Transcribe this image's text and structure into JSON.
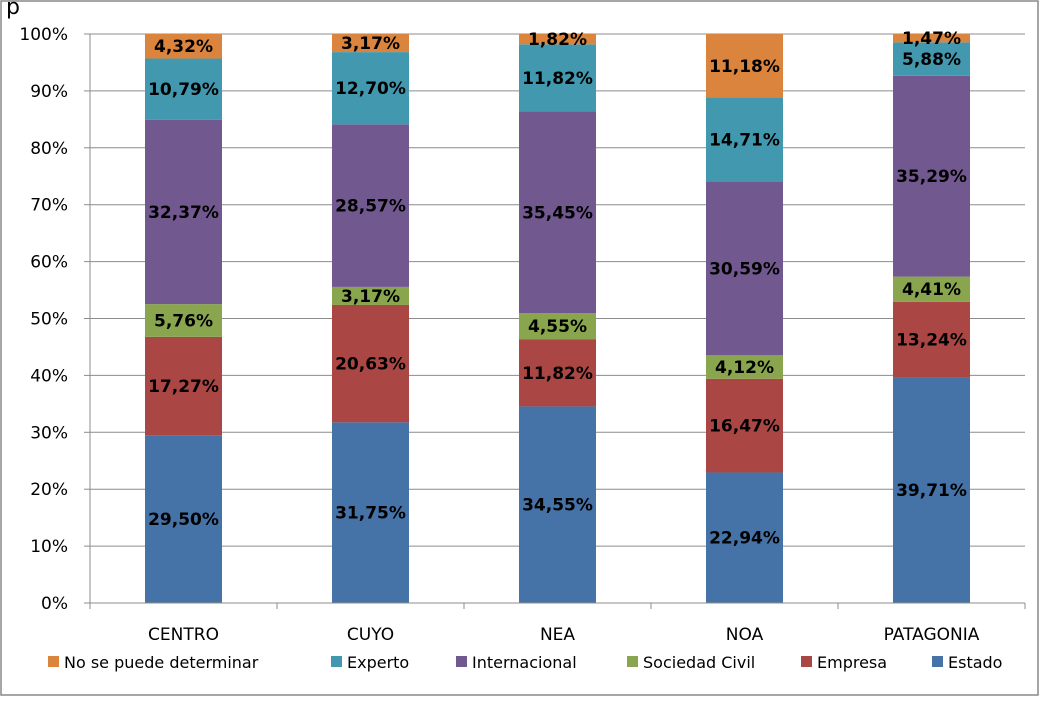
{
  "title_fragment": "p",
  "chart_data": {
    "type": "bar",
    "stacked": true,
    "percent": true,
    "categories": [
      "CENTRO",
      "CUYO",
      "NEA",
      "NOA",
      "PATAGONIA"
    ],
    "ylim": [
      0,
      100
    ],
    "yticks": [
      "0%",
      "10%",
      "20%",
      "30%",
      "40%",
      "50%",
      "60%",
      "70%",
      "80%",
      "90%",
      "100%"
    ],
    "grid": true,
    "legend_position": "bottom",
    "series": [
      {
        "name": "Estado",
        "color": "#4572A7",
        "values": [
          29.5,
          31.75,
          34.55,
          22.94,
          39.71
        ],
        "labels": [
          "29,50%",
          "31,75%",
          "34,55%",
          "22,94%",
          "39,71%"
        ]
      },
      {
        "name": "Empresa",
        "color": "#AA4643",
        "values": [
          17.27,
          20.63,
          11.82,
          16.47,
          13.24
        ],
        "labels": [
          "17,27%",
          "20,63%",
          "11,82%",
          "16,47%",
          "13,24%"
        ]
      },
      {
        "name": "Sociedad Civil",
        "color": "#89A54E",
        "values": [
          5.76,
          3.17,
          4.55,
          4.12,
          4.41
        ],
        "labels": [
          "5,76%",
          "3,17%",
          "4,55%",
          "4,12%",
          "4,41%"
        ]
      },
      {
        "name": "Internacional",
        "color": "#71588F",
        "values": [
          32.37,
          28.57,
          35.45,
          30.59,
          35.29
        ],
        "labels": [
          "32,37%",
          "28,57%",
          "35,45%",
          "30,59%",
          "35,29%"
        ]
      },
      {
        "name": "Experto",
        "color": "#4198AF",
        "values": [
          10.79,
          12.7,
          11.82,
          14.71,
          5.88
        ],
        "labels": [
          "10,79%",
          "12,70%",
          "11,82%",
          "14,71%",
          "5,88%"
        ]
      },
      {
        "name": "No se puede determinar",
        "color": "#DB843D",
        "values": [
          4.32,
          3.17,
          1.82,
          11.18,
          1.47
        ],
        "labels": [
          "4,32%",
          "3,17%",
          "1,82%",
          "11,18%",
          "1,47%"
        ]
      }
    ],
    "legend_order": [
      "No se puede determinar",
      "Experto",
      "Internacional",
      "Sociedad Civil",
      "Empresa",
      "Estado"
    ]
  }
}
